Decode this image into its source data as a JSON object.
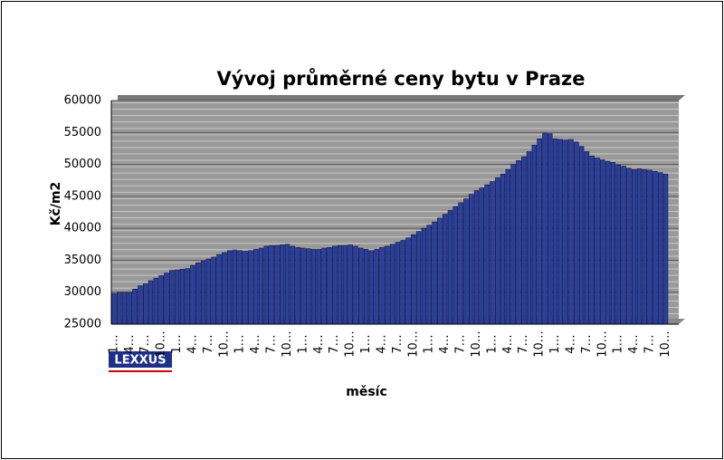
{
  "chart_data": {
    "type": "bar",
    "title": "Vývoj průměrné ceny bytu v Praze",
    "y_label": "Kč/m2",
    "x_label": "měsíc",
    "logo": "LEXXUS",
    "color": "#2b3f9e",
    "grid": true,
    "ylim": [
      25000,
      60000
    ],
    "yticks": [
      25000,
      30000,
      35000,
      40000,
      45000,
      50000,
      55000,
      60000
    ],
    "categories": [
      "1…",
      null,
      null,
      "4…",
      null,
      null,
      "7…",
      null,
      null,
      "10…",
      null,
      null,
      "1…",
      null,
      null,
      "4…",
      null,
      null,
      "7…",
      null,
      null,
      "10…",
      null,
      null,
      "1…",
      null,
      null,
      "4…",
      null,
      null,
      "7…",
      null,
      null,
      "10…",
      null,
      null,
      "1…",
      null,
      null,
      "4…",
      null,
      null,
      "7…",
      null,
      null,
      "10…",
      null,
      null,
      "1…",
      null,
      null,
      "4…",
      null,
      null,
      "7…",
      null,
      null,
      "10…",
      null,
      null,
      "1…",
      null,
      null,
      "4…",
      null,
      null,
      "7…",
      null,
      null,
      "10…",
      null,
      null,
      "1…",
      null,
      null,
      "4…",
      null,
      null,
      "7…",
      null,
      null,
      "10…",
      null,
      null,
      "1…",
      null,
      null,
      "4…",
      null,
      null,
      "7…",
      null,
      null,
      "10…",
      null,
      null,
      "1…",
      null,
      null,
      "4…",
      null,
      null,
      "7…",
      null,
      null,
      "10…",
      null,
      null
    ],
    "values": [
      29800,
      30000,
      30000,
      30000,
      30500,
      31000,
      31300,
      31800,
      32200,
      32600,
      33000,
      33400,
      33500,
      33600,
      33700,
      34200,
      34600,
      34900,
      35200,
      35500,
      35900,
      36200,
      36500,
      36600,
      36500,
      36400,
      36500,
      36700,
      36900,
      37200,
      37300,
      37300,
      37400,
      37500,
      37200,
      37000,
      36900,
      36800,
      36700,
      36700,
      36900,
      37000,
      37200,
      37300,
      37300,
      37400,
      37200,
      36900,
      36700,
      36500,
      36700,
      37000,
      37200,
      37500,
      37800,
      38100,
      38500,
      39000,
      39500,
      40000,
      40500,
      41000,
      41600,
      42200,
      42800,
      43400,
      44000,
      44600,
      45300,
      45900,
      46300,
      46800,
      47300,
      47900,
      48500,
      49200,
      50000,
      50600,
      51200,
      52000,
      53000,
      54000,
      54900,
      54800,
      54000,
      53900,
      53800,
      53900,
      53500,
      52800,
      52000,
      51300,
      51000,
      50700,
      50500,
      50300,
      49900,
      49700,
      49400,
      49200,
      49300,
      49200,
      49100,
      48900,
      48700,
      48500,
      null,
      null
    ]
  }
}
